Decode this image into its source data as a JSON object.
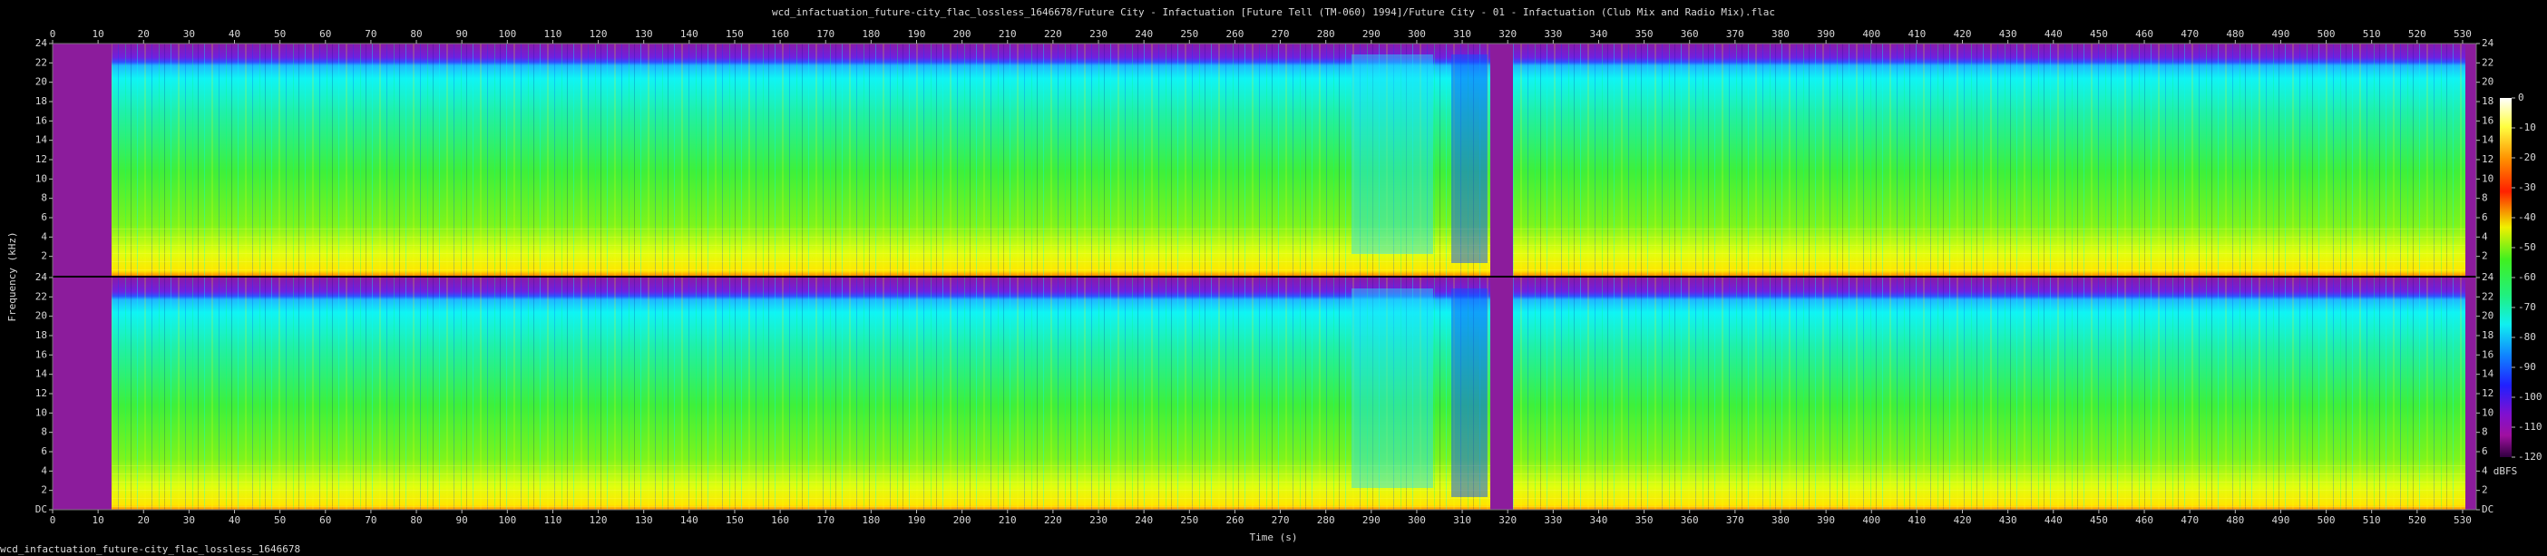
{
  "footer": "wcd_infactuation_future-city_flac_lossless_1646678",
  "chart_data": [
    {
      "type": "spectrogram",
      "title": "wcd_infactuation_future-city_flac_lossless_1646678/Future City - Infactuation [Future Tell (TM-060) 1994]/Future City - 01 - Infactuation (Club Mix and Radio Mix).flac",
      "ylabel": "Frequency (kHz)",
      "xlim": [
        0,
        533
      ],
      "xticks": [
        0,
        10,
        20,
        30,
        40,
        50,
        60,
        70,
        80,
        90,
        100,
        110,
        120,
        130,
        140,
        150,
        160,
        170,
        180,
        190,
        200,
        210,
        220,
        230,
        240,
        250,
        260,
        270,
        280,
        290,
        300,
        310,
        320,
        330,
        340,
        350,
        360,
        370,
        380,
        390,
        400,
        410,
        420,
        430,
        440,
        450,
        460,
        470,
        480,
        490,
        500,
        510,
        520,
        530
      ],
      "ylim": [
        0,
        24
      ],
      "yticks": [
        2,
        4,
        6,
        8,
        10,
        12,
        14,
        16,
        18,
        20,
        22,
        24
      ]
    },
    {
      "type": "spectrogram",
      "xlabel": "Time (s)",
      "xlim": [
        0,
        533
      ],
      "xticks": [
        0,
        10,
        20,
        30,
        40,
        50,
        60,
        70,
        80,
        90,
        100,
        110,
        120,
        130,
        140,
        150,
        160,
        170,
        180,
        190,
        200,
        210,
        220,
        230,
        240,
        250,
        260,
        270,
        280,
        290,
        300,
        310,
        320,
        330,
        340,
        350,
        360,
        370,
        380,
        390,
        400,
        410,
        420,
        430,
        440,
        450,
        460,
        470,
        480,
        490,
        500,
        510,
        520,
        530
      ],
      "ylim": [
        0,
        24
      ],
      "yticks": [
        {
          "value": 0,
          "label": "DC"
        },
        2,
        4,
        6,
        8,
        10,
        12,
        14,
        16,
        18,
        20,
        22,
        24
      ]
    },
    {
      "type": "colorbar",
      "label": "dBFS",
      "ylim": [
        -120,
        0
      ],
      "yticks": [
        0,
        -10,
        -20,
        -30,
        -40,
        -50,
        -60,
        -70,
        -80,
        -90,
        -100,
        -110,
        -120
      ]
    }
  ]
}
